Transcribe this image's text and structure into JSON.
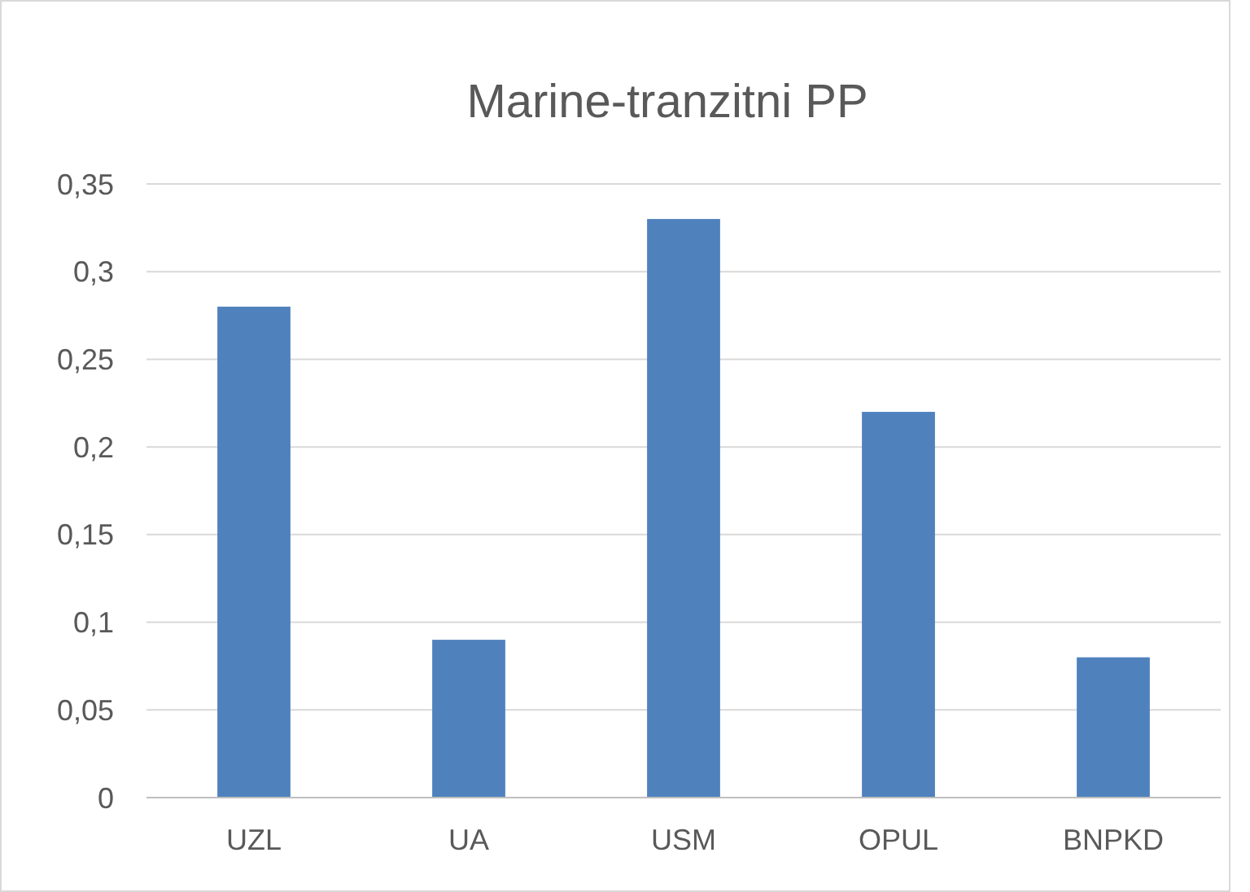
{
  "chart_data": {
    "type": "bar",
    "title": "Marine-tranzitni PP",
    "categories": [
      "UZL",
      "UA",
      "USM",
      "OPUL",
      "BNPKD"
    ],
    "values": [
      0.28,
      0.09,
      0.33,
      0.22,
      0.08
    ],
    "color": "#4f81bd",
    "ylim": [
      0,
      0.35
    ],
    "yticks": [
      0,
      {
        "value": 0.05,
        "label": "0,05"
      },
      {
        "value": 0.1,
        "label": "0,1"
      },
      {
        "value": 0.15,
        "label": "0,15"
      },
      {
        "value": 0.2,
        "label": "0,2"
      },
      {
        "value": 0.25,
        "label": "0,25"
      },
      {
        "value": 0.3,
        "label": "0,3"
      },
      {
        "value": 0.35,
        "label": "0,35"
      }
    ],
    "grid": "y"
  }
}
